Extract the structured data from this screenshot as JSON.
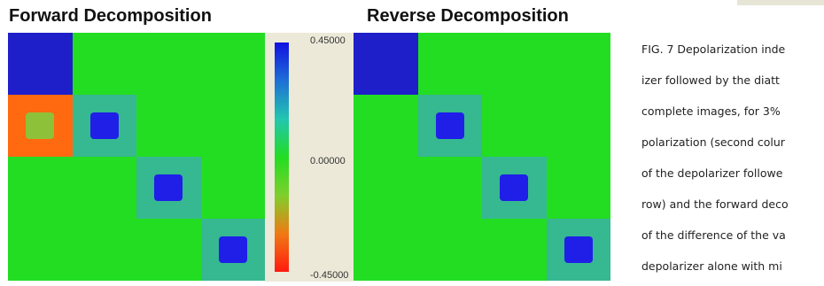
{
  "figure": {
    "panels": [
      {
        "title": "Forward Decomposition",
        "cells": [
          [
            "#1f1fc9",
            "#22dd22",
            "#22dd22",
            "#22dd22"
          ],
          [
            "#ff6a10",
            "#22dd22",
            "#22dd22",
            "#22dd22"
          ],
          [
            "#22dd22",
            "#22dd22",
            "#22dd22",
            "#22dd22"
          ],
          [
            "#22dd22",
            "#22dd22",
            "#22dd22",
            "#22dd22"
          ]
        ],
        "cores": [
          {
            "row": 1,
            "col": 0,
            "ring": "#ff6a10",
            "core": "#8ec13a"
          },
          {
            "row": 1,
            "col": 1,
            "ring": "#36b891",
            "core": "#1f1fe8"
          },
          {
            "row": 2,
            "col": 2,
            "ring": "#36b891",
            "core": "#1f1fe8"
          },
          {
            "row": 3,
            "col": 3,
            "ring": "#36b891",
            "core": "#1f1fe8"
          }
        ]
      },
      {
        "title": "Reverse Decomposition",
        "cells": [
          [
            "#1f1fc9",
            "#22dd22",
            "#22dd22",
            "#22dd22"
          ],
          [
            "#22dd22",
            "#22dd22",
            "#22dd22",
            "#22dd22"
          ],
          [
            "#22dd22",
            "#22dd22",
            "#22dd22",
            "#22dd22"
          ],
          [
            "#22dd22",
            "#22dd22",
            "#22dd22",
            "#22dd22"
          ]
        ],
        "cores": [
          {
            "row": 1,
            "col": 1,
            "ring": "#36b891",
            "core": "#1f1fe8"
          },
          {
            "row": 2,
            "col": 2,
            "ring": "#36b891",
            "core": "#1f1fe8"
          },
          {
            "row": 3,
            "col": 3,
            "ring": "#36b891",
            "core": "#1f1fe8"
          }
        ]
      }
    ],
    "colorbar": {
      "max": "0.45000",
      "mid": "0.00000",
      "min": "-0.45000",
      "stops": [
        "#1010e0",
        "#1e6fd6",
        "#22c6b0",
        "#22dd22",
        "#7fcf2c",
        "#f07a14",
        "#ff1a10"
      ],
      "background": "#ece9d8"
    },
    "caption_lines": [
      "FIG. 7 Depolarization inde",
      "izer followed by the diatt",
      "complete images, for 3%",
      "polarization (second colur",
      "of the depolarizer followe",
      "row) and the forward deco",
      "of the difference of the va",
      "depolarizer alone with mi"
    ]
  }
}
